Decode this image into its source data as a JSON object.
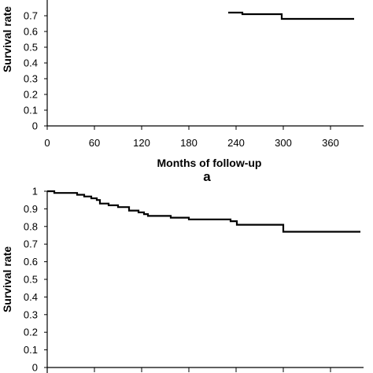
{
  "chart_data": [
    {
      "type": "line",
      "panel_label": "a",
      "xlabel": "Months of follow-up",
      "ylabel": "Survival rate",
      "xlim": [
        0,
        400
      ],
      "ylim": [
        0,
        1
      ],
      "x_ticks": [
        0,
        60,
        120,
        180,
        240,
        300,
        360
      ],
      "y_ticks_visible": [
        0,
        0.1,
        0.2,
        0.3,
        0.4,
        0.5,
        0.6,
        0.7
      ],
      "grid": false,
      "series": [
        {
          "points": [
            [
              230,
              0.72
            ],
            [
              248,
              0.72
            ],
            [
              248,
              0.71
            ],
            [
              298,
              0.71
            ],
            [
              298,
              0.68
            ],
            [
              390,
              0.68
            ]
          ]
        }
      ]
    },
    {
      "type": "line",
      "ylabel": "Survival rate",
      "xlim": [
        0,
        400
      ],
      "ylim": [
        0,
        1
      ],
      "y_ticks": [
        0,
        0.1,
        0.2,
        0.3,
        0.4,
        0.5,
        0.6,
        0.7,
        0.8,
        0.9,
        1
      ],
      "grid": false,
      "series": [
        {
          "points": [
            [
              0,
              1.0
            ],
            [
              9,
              1.0
            ],
            [
              9,
              0.99
            ],
            [
              38,
              0.99
            ],
            [
              38,
              0.98
            ],
            [
              47,
              0.98
            ],
            [
              47,
              0.97
            ],
            [
              56,
              0.97
            ],
            [
              56,
              0.96
            ],
            [
              63,
              0.96
            ],
            [
              63,
              0.95
            ],
            [
              67,
              0.95
            ],
            [
              67,
              0.93
            ],
            [
              78,
              0.93
            ],
            [
              78,
              0.92
            ],
            [
              90,
              0.92
            ],
            [
              90,
              0.91
            ],
            [
              104,
              0.91
            ],
            [
              104,
              0.89
            ],
            [
              116,
              0.89
            ],
            [
              116,
              0.88
            ],
            [
              123,
              0.88
            ],
            [
              123,
              0.87
            ],
            [
              128,
              0.87
            ],
            [
              128,
              0.86
            ],
            [
              157,
              0.86
            ],
            [
              157,
              0.85
            ],
            [
              180,
              0.85
            ],
            [
              180,
              0.84
            ],
            [
              233,
              0.84
            ],
            [
              233,
              0.83
            ],
            [
              241,
              0.83
            ],
            [
              241,
              0.81
            ],
            [
              300,
              0.81
            ],
            [
              300,
              0.77
            ],
            [
              398,
              0.77
            ]
          ]
        }
      ]
    }
  ]
}
